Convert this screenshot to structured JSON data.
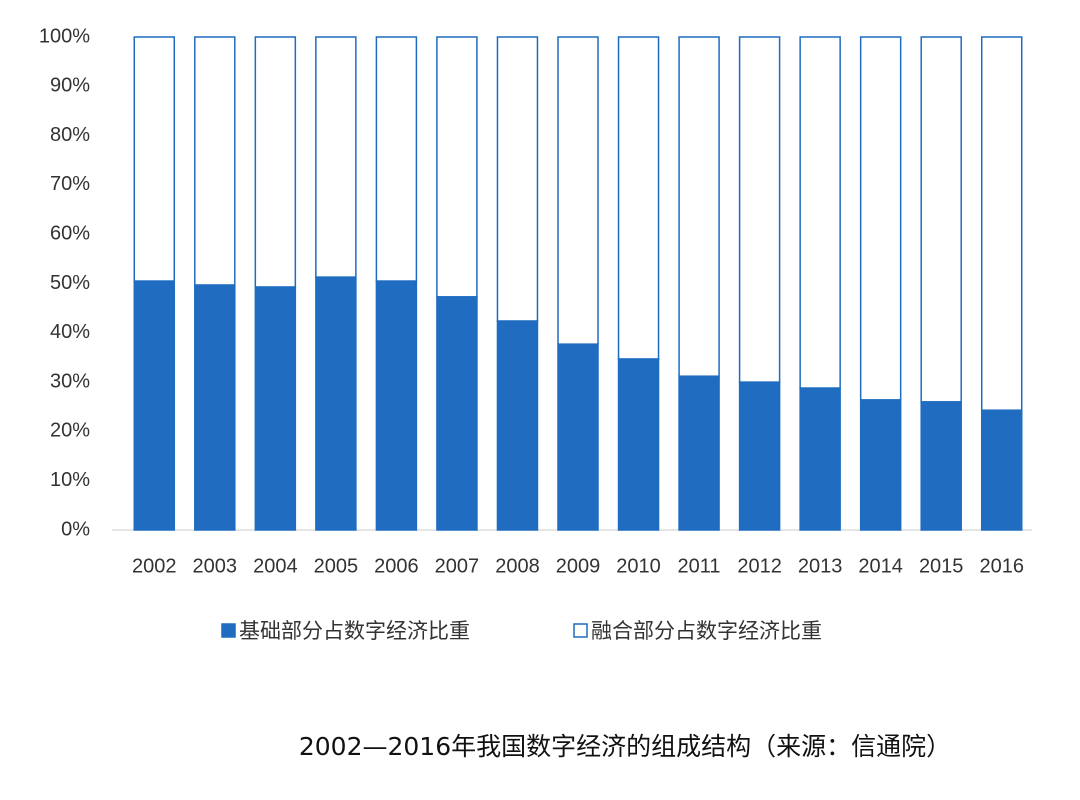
{
  "chart_data": {
    "type": "bar",
    "stacked": true,
    "title": "2002—2016年我国数字经济的组成结构（来源：信通院）",
    "categories": [
      "2002",
      "2003",
      "2004",
      "2005",
      "2006",
      "2007",
      "2008",
      "2009",
      "2010",
      "2011",
      "2012",
      "2013",
      "2014",
      "2015",
      "2016"
    ],
    "series": [
      {
        "name": "基础部分占数字经济比重",
        "color": "#1f6cc1",
        "values": [
          50.5,
          49.7,
          49.3,
          51.3,
          50.5,
          47.3,
          42.4,
          37.7,
          34.7,
          31.2,
          30.0,
          28.8,
          26.4,
          26.0,
          24.3
        ]
      },
      {
        "name": "融合部分占数字经济比重",
        "color": "#ffffff",
        "values": [
          49.5,
          50.3,
          50.7,
          48.7,
          49.5,
          52.7,
          57.6,
          62.3,
          65.3,
          68.8,
          70.0,
          71.2,
          73.6,
          74.0,
          75.7
        ]
      }
    ],
    "ylim": [
      0,
      100
    ],
    "yticks": [
      {
        "value": 0,
        "label": "0%"
      },
      {
        "value": 10,
        "label": "10%"
      },
      {
        "value": 20,
        "label": "20%"
      },
      {
        "value": 30,
        "label": "30%"
      },
      {
        "value": 40,
        "label": "40%"
      },
      {
        "value": 50,
        "label": "50%"
      },
      {
        "value": 60,
        "label": "60%"
      },
      {
        "value": 70,
        "label": "70%"
      },
      {
        "value": 80,
        "label": "80%"
      },
      {
        "value": 90,
        "label": "90%"
      },
      {
        "value": 100,
        "label": "100%"
      }
    ]
  }
}
